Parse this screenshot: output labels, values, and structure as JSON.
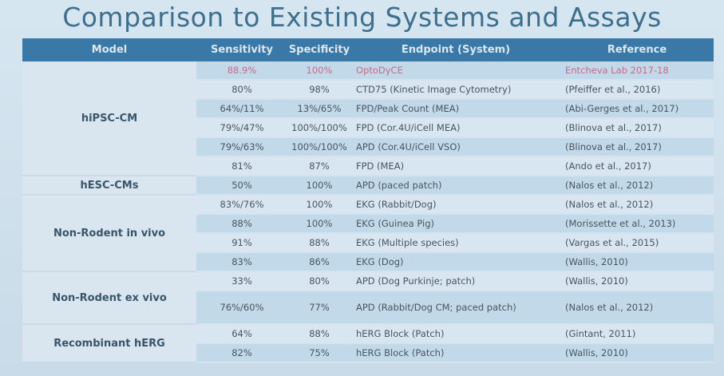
{
  "title": "Comparison to Existing Systems and Assays",
  "headers": [
    "Model",
    "Sensitivity",
    "Specificity",
    "Endpoint (System)",
    "Reference"
  ],
  "groups": [
    {
      "model": "hiPSC-CM",
      "rows": [
        {
          "sens": "88.9%",
          "spec": "100%",
          "endpoint": "OptoDyCE",
          "ref": "Entcheva Lab 2017-18"
        },
        {
          "sens": "80%",
          "spec": "98%",
          "endpoint": "CTD75 (Kinetic Image Cytometry)",
          "ref": "(Pfeiffer et al., 2016)"
        },
        {
          "sens": "64%/11%",
          "spec": "13%/65%",
          "endpoint": "FPD/Peak Count (MEA)",
          "ref": "(Abi-Gerges et al., 2017)"
        },
        {
          "sens": "79%/47%",
          "spec": "100%/100%",
          "endpoint": "FPD (Cor.4U/iCell MEA)",
          "ref": "(Blinova et al., 2017)"
        },
        {
          "sens": "79%/63%",
          "spec": "100%/100%",
          "endpoint": "APD (Cor.4U/iCell VSO)",
          "ref": "(Blinova et al., 2017)"
        },
        {
          "sens": "81%",
          "spec": "87%",
          "endpoint": "FPD (MEA)",
          "ref": "(Ando et al., 2017)"
        }
      ]
    },
    {
      "model": "hESC-CMs",
      "rows": [
        {
          "sens": "50%",
          "spec": "100%",
          "endpoint": "APD (paced patch)",
          "ref": "(Nalos et al., 2012)"
        }
      ]
    },
    {
      "model": "Non-Rodent in vivo",
      "rows": [
        {
          "sens": "83%/76%",
          "spec": "100%",
          "endpoint": "EKG (Rabbit/Dog)",
          "ref": "(Nalos et al., 2012)"
        },
        {
          "sens": "88%",
          "spec": "100%",
          "endpoint": "EKG (Guinea Pig)",
          "ref": "(Morissette et al., 2013)"
        },
        {
          "sens": "91%",
          "spec": "88%",
          "endpoint": "EKG (Multiple species)",
          "ref": "(Vargas et al., 2015)"
        },
        {
          "sens": "83%",
          "spec": "86%",
          "endpoint": "EKG (Dog)",
          "ref": "(Wallis, 2010)"
        }
      ]
    },
    {
      "model": "Non-Rodent ex vivo",
      "rows": [
        {
          "sens": "33%",
          "spec": "80%",
          "endpoint": "APD (Dog Purkinje; patch)",
          "ref": "(Wallis, 2010)"
        },
        {
          "sens": "76%/60%",
          "spec": "77%",
          "endpoint": "APD (Rabbit/Dog CM; paced patch)",
          "ref": "(Nalos et al., 2012)"
        }
      ]
    },
    {
      "model": "Recombinant hERG",
      "rows": [
        {
          "sens": "64%",
          "spec": "88%",
          "endpoint": "hERG Block (Patch)",
          "ref": "(Gintant, 2011)"
        },
        {
          "sens": "82%",
          "spec": "75%",
          "endpoint": "hERG Block (Patch)",
          "ref": "(Wallis, 2010)"
        }
      ]
    }
  ],
  "colors": {
    "header_bg": "#3a78a8",
    "title": "#3d6f8e",
    "highlight_text": "#c96a8a"
  }
}
